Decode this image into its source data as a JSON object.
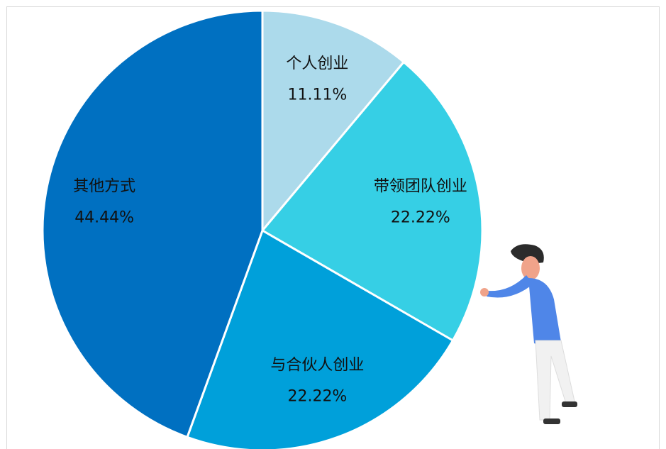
{
  "chart_data": {
    "type": "pie",
    "categories": [
      "个人创业",
      "带领团队创业",
      "与合伙人创业",
      "其他方式"
    ],
    "values": [
      11.11,
      22.22,
      22.22,
      44.44
    ],
    "value_labels": [
      "11.11%",
      "22.22%",
      "22.22%",
      "44.44%"
    ],
    "colors": [
      "#acdaeb",
      "#36cfe5",
      "#00a0da",
      "#0070c1"
    ]
  }
}
